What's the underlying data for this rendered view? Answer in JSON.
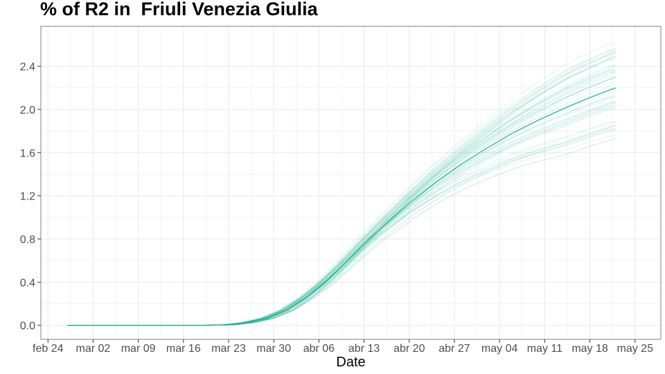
{
  "chart_data": {
    "type": "line",
    "title": "% of R2 in  Friuli Venezia Giulia",
    "xlabel": "Date",
    "ylabel": "",
    "x_ticks": [
      "feb 24",
      "mar 02",
      "mar 09",
      "mar 16",
      "mar 23",
      "mar 30",
      "abr 06",
      "abr 13",
      "abr 20",
      "abr 27",
      "may 04",
      "may 11",
      "may 18",
      "may 25"
    ],
    "x_tick_days": [
      0,
      7,
      14,
      21,
      28,
      35,
      42,
      49,
      56,
      63,
      70,
      77,
      84,
      91
    ],
    "xlim_days": [
      -1.1,
      95.0
    ],
    "x_origin_date": "2020-02-24",
    "y_ticks": [
      0.0,
      0.4,
      0.8,
      1.2,
      1.6,
      2.0,
      2.4
    ],
    "ylim": [
      -0.13,
      2.77
    ],
    "grid": true,
    "legend": "none",
    "colors": {
      "line": "#1fb58f",
      "grid": "#ebebeb",
      "panel_border": "#7f7f7f",
      "axis_tick": "#333333"
    },
    "series": [
      {
        "role": "median",
        "x_days": [
          3,
          10,
          17,
          24,
          28,
          31,
          34,
          37,
          40,
          43,
          46,
          49,
          52,
          56,
          60,
          64,
          68,
          72,
          76,
          80,
          84,
          88
        ],
        "values": [
          0,
          0,
          0,
          0,
          0.005,
          0.025,
          0.065,
          0.14,
          0.255,
          0.4,
          0.57,
          0.75,
          0.92,
          1.13,
          1.32,
          1.49,
          1.64,
          1.78,
          1.9,
          2.01,
          2.11,
          2.2
        ]
      }
    ],
    "ensemble": {
      "count": 60,
      "final_range": [
        1.75,
        2.62
      ]
    }
  }
}
